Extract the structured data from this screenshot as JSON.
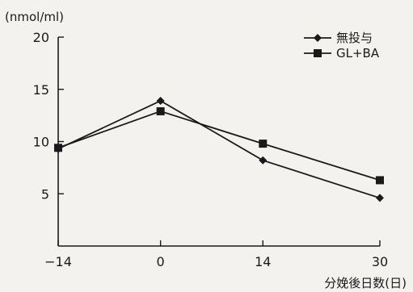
{
  "chart_data": {
    "type": "line",
    "title": "",
    "y_unit": "(nmol/ml)",
    "xlabel": "分娩後日数(日)",
    "ylabel": "",
    "x": [
      -14,
      0,
      14,
      30
    ],
    "x_tick_labels": [
      "−14",
      "0",
      "14",
      "30"
    ],
    "y_ticks": [
      0,
      5,
      10,
      15,
      20
    ],
    "y_tick_labels": [
      "",
      "5",
      "10",
      "15",
      "20"
    ],
    "ylim": [
      0,
      20
    ],
    "xlim": [
      -14,
      30
    ],
    "grid": false,
    "legend_position": "top-right",
    "series": [
      {
        "name": "無投与",
        "marker": "diamond",
        "values": [
          9.3,
          13.9,
          8.2,
          4.6
        ]
      },
      {
        "name": "GL+BA",
        "marker": "square",
        "values": [
          9.4,
          12.9,
          9.8,
          6.3
        ]
      }
    ],
    "colors": {
      "line": "#1a1a1a",
      "background": "#f4f2ef"
    }
  }
}
